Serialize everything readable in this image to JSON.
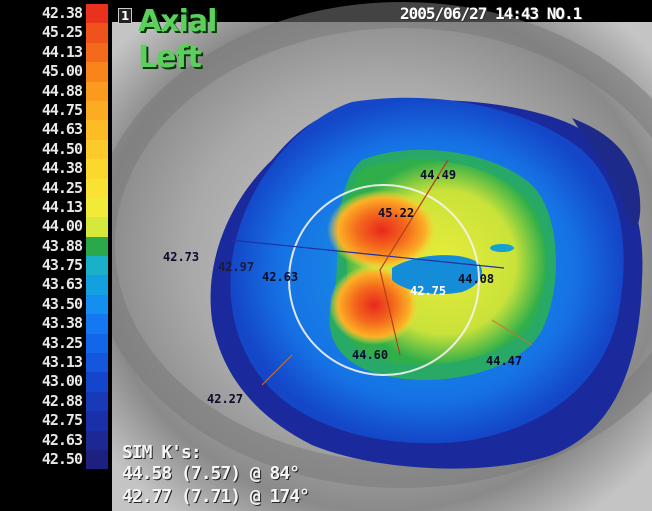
{
  "header": {
    "view_index": "1",
    "map_type": "Axial",
    "eye_side": "Left",
    "exam_info": "2005/06/27 14:43 NO.1"
  },
  "scale": {
    "labels": [
      "42.38",
      "45.25",
      "44.13",
      "45.00",
      "44.88",
      "44.75",
      "44.63",
      "44.50",
      "44.38",
      "44.25",
      "44.13",
      "44.00",
      "43.88",
      "43.75",
      "43.63",
      "43.50",
      "43.38",
      "43.25",
      "43.13",
      "43.00",
      "42.88",
      "42.75",
      "42.63",
      "42.50"
    ],
    "colors": [
      "#e8321e",
      "#f0521c",
      "#f46a1c",
      "#f8841c",
      "#fa9a1e",
      "#fcac22",
      "#fcbc26",
      "#fcca2a",
      "#fcd82e",
      "#fae234",
      "#f2ea38",
      "#d6e83c",
      "#2aa84a",
      "#1ab0c8",
      "#14a0e0",
      "#148ef0",
      "#1478f0",
      "#1466e8",
      "#1456dc",
      "#1446cc",
      "#183ab8",
      "#1a30a8",
      "#1c2894",
      "#1e2080"
    ]
  },
  "keratometry": {
    "k_4449": "44.49",
    "k_4522": "45.22",
    "k_4273": "42.73",
    "k_4297": "42.97",
    "k_4263": "42.63",
    "k_4408": "44.08",
    "k_4275": "42.75",
    "k_4460": "44.60",
    "k_4447": "44.47",
    "k_4227": "42.27"
  },
  "sim_k": {
    "title": "SIM K's:",
    "k1": "44.58 (7.57) @ 84°",
    "k2": "42.77 (7.71) @ 174°"
  }
}
